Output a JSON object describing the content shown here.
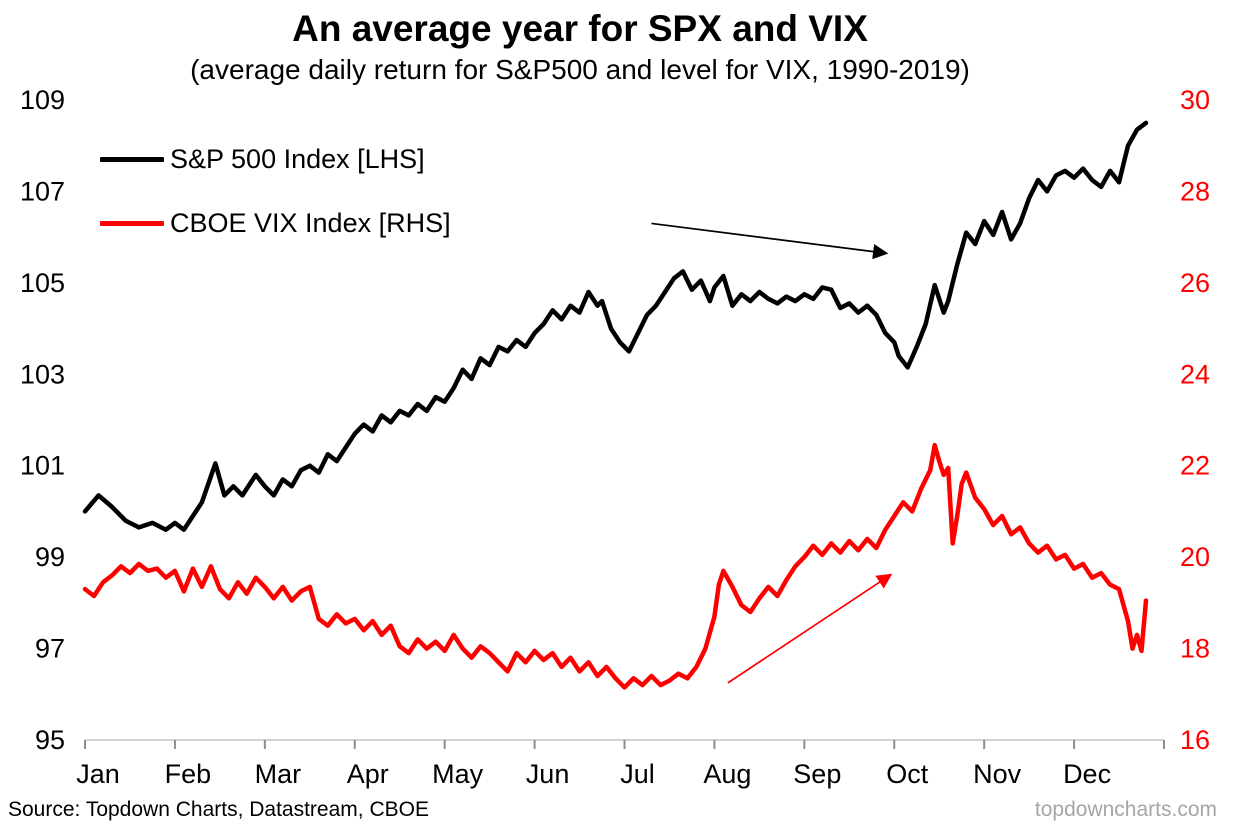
{
  "title": "An average year for SPX and VIX",
  "subtitle": "(average daily return for S&P500 and level for VIX, 1990-2019)",
  "source": "Source: Topdown Charts, Datastream, CBOE",
  "watermark": "topdowncharts.com",
  "chart_data": {
    "type": "line",
    "x_unit": "month-fraction (0 = start of Jan, 12 = end of Dec)",
    "x_tick_labels": [
      "Jan",
      "Feb",
      "Mar",
      "Apr",
      "May",
      "Jun",
      "Jul",
      "Aug",
      "Sep",
      "Oct",
      "Nov",
      "Dec"
    ],
    "grid": false,
    "legend_position": "top-left-inside",
    "axis_line_color": "#d2d2d2",
    "tick_mark_color": "#8c8c8c",
    "left_axis": {
      "min": 95,
      "max": 109,
      "ticks": [
        95,
        97,
        99,
        101,
        103,
        105,
        107,
        109
      ],
      "color": "#000000"
    },
    "right_axis": {
      "min": 16,
      "max": 30,
      "ticks": [
        16,
        18,
        20,
        22,
        24,
        26,
        28,
        30
      ],
      "color": "#ff0000"
    },
    "series": [
      {
        "name": "S&P 500 Index [LHS]",
        "axis": "left",
        "color": "#000000",
        "points": [
          [
            0.0,
            100.0
          ],
          [
            0.15,
            100.35
          ],
          [
            0.3,
            100.1
          ],
          [
            0.45,
            99.8
          ],
          [
            0.6,
            99.65
          ],
          [
            0.75,
            99.75
          ],
          [
            0.9,
            99.6
          ],
          [
            1.0,
            99.75
          ],
          [
            1.1,
            99.6
          ],
          [
            1.2,
            99.9
          ],
          [
            1.3,
            100.2
          ],
          [
            1.45,
            101.05
          ],
          [
            1.55,
            100.35
          ],
          [
            1.65,
            100.55
          ],
          [
            1.75,
            100.35
          ],
          [
            1.9,
            100.8
          ],
          [
            2.0,
            100.55
          ],
          [
            2.1,
            100.35
          ],
          [
            2.2,
            100.7
          ],
          [
            2.3,
            100.55
          ],
          [
            2.4,
            100.9
          ],
          [
            2.5,
            101.0
          ],
          [
            2.6,
            100.85
          ],
          [
            2.7,
            101.25
          ],
          [
            2.8,
            101.1
          ],
          [
            2.9,
            101.4
          ],
          [
            3.0,
            101.7
          ],
          [
            3.1,
            101.9
          ],
          [
            3.2,
            101.75
          ],
          [
            3.3,
            102.1
          ],
          [
            3.4,
            101.95
          ],
          [
            3.5,
            102.2
          ],
          [
            3.6,
            102.1
          ],
          [
            3.7,
            102.35
          ],
          [
            3.8,
            102.2
          ],
          [
            3.9,
            102.5
          ],
          [
            4.0,
            102.4
          ],
          [
            4.1,
            102.7
          ],
          [
            4.2,
            103.1
          ],
          [
            4.3,
            102.9
          ],
          [
            4.4,
            103.35
          ],
          [
            4.5,
            103.2
          ],
          [
            4.6,
            103.6
          ],
          [
            4.7,
            103.5
          ],
          [
            4.8,
            103.75
          ],
          [
            4.9,
            103.6
          ],
          [
            5.0,
            103.9
          ],
          [
            5.1,
            104.1
          ],
          [
            5.2,
            104.4
          ],
          [
            5.3,
            104.2
          ],
          [
            5.4,
            104.5
          ],
          [
            5.5,
            104.35
          ],
          [
            5.6,
            104.8
          ],
          [
            5.7,
            104.5
          ],
          [
            5.75,
            104.6
          ],
          [
            5.85,
            104.0
          ],
          [
            5.95,
            103.7
          ],
          [
            6.05,
            103.5
          ],
          [
            6.15,
            103.9
          ],
          [
            6.25,
            104.3
          ],
          [
            6.35,
            104.5
          ],
          [
            6.45,
            104.8
          ],
          [
            6.55,
            105.1
          ],
          [
            6.65,
            105.25
          ],
          [
            6.75,
            104.85
          ],
          [
            6.85,
            105.05
          ],
          [
            6.95,
            104.6
          ],
          [
            7.0,
            104.9
          ],
          [
            7.1,
            105.15
          ],
          [
            7.2,
            104.5
          ],
          [
            7.3,
            104.75
          ],
          [
            7.4,
            104.6
          ],
          [
            7.5,
            104.8
          ],
          [
            7.6,
            104.65
          ],
          [
            7.7,
            104.55
          ],
          [
            7.8,
            104.7
          ],
          [
            7.9,
            104.6
          ],
          [
            8.0,
            104.75
          ],
          [
            8.1,
            104.65
          ],
          [
            8.2,
            104.9
          ],
          [
            8.3,
            104.85
          ],
          [
            8.4,
            104.45
          ],
          [
            8.5,
            104.55
          ],
          [
            8.6,
            104.35
          ],
          [
            8.7,
            104.5
          ],
          [
            8.8,
            104.3
          ],
          [
            8.9,
            103.9
          ],
          [
            9.0,
            103.7
          ],
          [
            9.05,
            103.4
          ],
          [
            9.15,
            103.15
          ],
          [
            9.25,
            103.6
          ],
          [
            9.35,
            104.1
          ],
          [
            9.45,
            104.95
          ],
          [
            9.55,
            104.35
          ],
          [
            9.6,
            104.6
          ],
          [
            9.7,
            105.4
          ],
          [
            9.8,
            106.1
          ],
          [
            9.9,
            105.85
          ],
          [
            10.0,
            106.35
          ],
          [
            10.1,
            106.05
          ],
          [
            10.2,
            106.55
          ],
          [
            10.3,
            105.95
          ],
          [
            10.4,
            106.3
          ],
          [
            10.5,
            106.85
          ],
          [
            10.6,
            107.25
          ],
          [
            10.7,
            107.0
          ],
          [
            10.8,
            107.35
          ],
          [
            10.9,
            107.45
          ],
          [
            11.0,
            107.3
          ],
          [
            11.1,
            107.5
          ],
          [
            11.2,
            107.25
          ],
          [
            11.3,
            107.1
          ],
          [
            11.4,
            107.45
          ],
          [
            11.5,
            107.2
          ],
          [
            11.6,
            108.0
          ],
          [
            11.7,
            108.35
          ],
          [
            11.8,
            108.5
          ]
        ]
      },
      {
        "name": "CBOE VIX Index [RHS]",
        "axis": "right",
        "color": "#ff0000",
        "points": [
          [
            0.0,
            19.3
          ],
          [
            0.1,
            19.15
          ],
          [
            0.2,
            19.45
          ],
          [
            0.3,
            19.6
          ],
          [
            0.4,
            19.8
          ],
          [
            0.5,
            19.65
          ],
          [
            0.6,
            19.85
          ],
          [
            0.7,
            19.7
          ],
          [
            0.8,
            19.75
          ],
          [
            0.9,
            19.55
          ],
          [
            1.0,
            19.7
          ],
          [
            1.1,
            19.25
          ],
          [
            1.2,
            19.75
          ],
          [
            1.3,
            19.35
          ],
          [
            1.4,
            19.8
          ],
          [
            1.5,
            19.3
          ],
          [
            1.6,
            19.1
          ],
          [
            1.7,
            19.45
          ],
          [
            1.8,
            19.2
          ],
          [
            1.9,
            19.55
          ],
          [
            2.0,
            19.35
          ],
          [
            2.1,
            19.1
          ],
          [
            2.2,
            19.35
          ],
          [
            2.3,
            19.05
          ],
          [
            2.4,
            19.25
          ],
          [
            2.5,
            19.35
          ],
          [
            2.6,
            18.65
          ],
          [
            2.7,
            18.5
          ],
          [
            2.8,
            18.75
          ],
          [
            2.9,
            18.55
          ],
          [
            3.0,
            18.65
          ],
          [
            3.1,
            18.4
          ],
          [
            3.2,
            18.6
          ],
          [
            3.3,
            18.3
          ],
          [
            3.4,
            18.5
          ],
          [
            3.5,
            18.05
          ],
          [
            3.6,
            17.9
          ],
          [
            3.7,
            18.2
          ],
          [
            3.8,
            18.0
          ],
          [
            3.9,
            18.15
          ],
          [
            4.0,
            17.95
          ],
          [
            4.1,
            18.3
          ],
          [
            4.2,
            18.0
          ],
          [
            4.3,
            17.8
          ],
          [
            4.4,
            18.05
          ],
          [
            4.5,
            17.9
          ],
          [
            4.6,
            17.7
          ],
          [
            4.7,
            17.5
          ],
          [
            4.8,
            17.9
          ],
          [
            4.9,
            17.7
          ],
          [
            5.0,
            17.95
          ],
          [
            5.1,
            17.75
          ],
          [
            5.2,
            17.9
          ],
          [
            5.3,
            17.6
          ],
          [
            5.4,
            17.8
          ],
          [
            5.5,
            17.5
          ],
          [
            5.6,
            17.7
          ],
          [
            5.7,
            17.4
          ],
          [
            5.8,
            17.6
          ],
          [
            5.9,
            17.35
          ],
          [
            6.0,
            17.15
          ],
          [
            6.1,
            17.35
          ],
          [
            6.2,
            17.2
          ],
          [
            6.3,
            17.4
          ],
          [
            6.4,
            17.2
          ],
          [
            6.5,
            17.3
          ],
          [
            6.6,
            17.45
          ],
          [
            6.7,
            17.35
          ],
          [
            6.8,
            17.6
          ],
          [
            6.9,
            18.0
          ],
          [
            7.0,
            18.7
          ],
          [
            7.05,
            19.4
          ],
          [
            7.1,
            19.7
          ],
          [
            7.2,
            19.35
          ],
          [
            7.3,
            18.95
          ],
          [
            7.4,
            18.8
          ],
          [
            7.5,
            19.1
          ],
          [
            7.6,
            19.35
          ],
          [
            7.7,
            19.15
          ],
          [
            7.8,
            19.5
          ],
          [
            7.9,
            19.8
          ],
          [
            8.0,
            20.0
          ],
          [
            8.1,
            20.25
          ],
          [
            8.2,
            20.05
          ],
          [
            8.3,
            20.3
          ],
          [
            8.4,
            20.1
          ],
          [
            8.5,
            20.35
          ],
          [
            8.6,
            20.15
          ],
          [
            8.7,
            20.4
          ],
          [
            8.8,
            20.2
          ],
          [
            8.9,
            20.6
          ],
          [
            9.0,
            20.9
          ],
          [
            9.1,
            21.2
          ],
          [
            9.2,
            21.0
          ],
          [
            9.3,
            21.5
          ],
          [
            9.4,
            21.9
          ],
          [
            9.45,
            22.45
          ],
          [
            9.5,
            22.1
          ],
          [
            9.55,
            21.8
          ],
          [
            9.6,
            21.95
          ],
          [
            9.65,
            20.3
          ],
          [
            9.7,
            20.9
          ],
          [
            9.75,
            21.6
          ],
          [
            9.8,
            21.85
          ],
          [
            9.9,
            21.3
          ],
          [
            10.0,
            21.05
          ],
          [
            10.1,
            20.7
          ],
          [
            10.2,
            20.9
          ],
          [
            10.3,
            20.5
          ],
          [
            10.4,
            20.65
          ],
          [
            10.5,
            20.3
          ],
          [
            10.6,
            20.1
          ],
          [
            10.7,
            20.25
          ],
          [
            10.8,
            19.95
          ],
          [
            10.9,
            20.05
          ],
          [
            11.0,
            19.75
          ],
          [
            11.1,
            19.85
          ],
          [
            11.2,
            19.55
          ],
          [
            11.3,
            19.65
          ],
          [
            11.4,
            19.4
          ],
          [
            11.5,
            19.3
          ],
          [
            11.6,
            18.6
          ],
          [
            11.65,
            18.0
          ],
          [
            11.7,
            18.3
          ],
          [
            11.75,
            17.95
          ],
          [
            11.8,
            19.05
          ]
        ]
      }
    ],
    "annotations": [
      {
        "type": "arrow",
        "axis": "left",
        "color": "#000000",
        "from": [
          6.3,
          106.3
        ],
        "to": [
          8.9,
          105.65
        ]
      },
      {
        "type": "arrow",
        "axis": "right",
        "color": "#ff0000",
        "from": [
          7.15,
          17.25
        ],
        "to": [
          8.95,
          19.6
        ]
      }
    ]
  }
}
